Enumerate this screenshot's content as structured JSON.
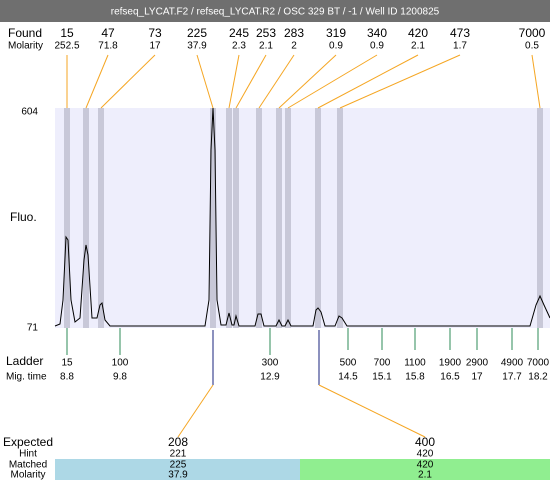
{
  "header": {
    "title": "refseq_LYCAT.F2 / refseq_LYCAT.R2 / OSC 329 BT / -1 / Well ID 1200825"
  },
  "found": {
    "label": "Found",
    "molarity_label": "Molarity",
    "peaks": [
      {
        "size": 15,
        "molarity": 252.5
      },
      {
        "size": 47,
        "molarity": 71.8
      },
      {
        "size": 73,
        "molarity": 17
      },
      {
        "size": 225,
        "molarity": 37.9
      },
      {
        "size": 245,
        "molarity": 2.3
      },
      {
        "size": 253,
        "molarity": 2.1
      },
      {
        "size": 283,
        "molarity": 2
      },
      {
        "size": 319,
        "molarity": 0.9
      },
      {
        "size": 340,
        "molarity": 0.9
      },
      {
        "size": 420,
        "molarity": 2.1
      },
      {
        "size": 473,
        "molarity": 1.7
      },
      {
        "size": 7000,
        "molarity": 0.5
      }
    ]
  },
  "y_axis": {
    "label": "Fluo.",
    "max": 604,
    "min": 71
  },
  "ladder": {
    "label": "Ladder",
    "time_label": "Mig. time",
    "sizes": [
      15,
      100,
      300,
      500,
      700,
      1100,
      1900,
      2900,
      4900,
      7000
    ],
    "times": [
      8.8,
      9.8,
      12.9,
      14.5,
      15.1,
      15.8,
      16.5,
      17,
      17.7,
      18.2
    ]
  },
  "expected": {
    "label": "Expected",
    "hint_label": "Hint",
    "matched_label": "Matched",
    "molarity_label": "Molarity",
    "items": [
      {
        "expected": 208,
        "hint": 221,
        "matched": 225,
        "molarity": 37.9
      },
      {
        "expected": 400,
        "hint": 420,
        "matched": 420,
        "molarity": 2.1
      }
    ]
  }
}
